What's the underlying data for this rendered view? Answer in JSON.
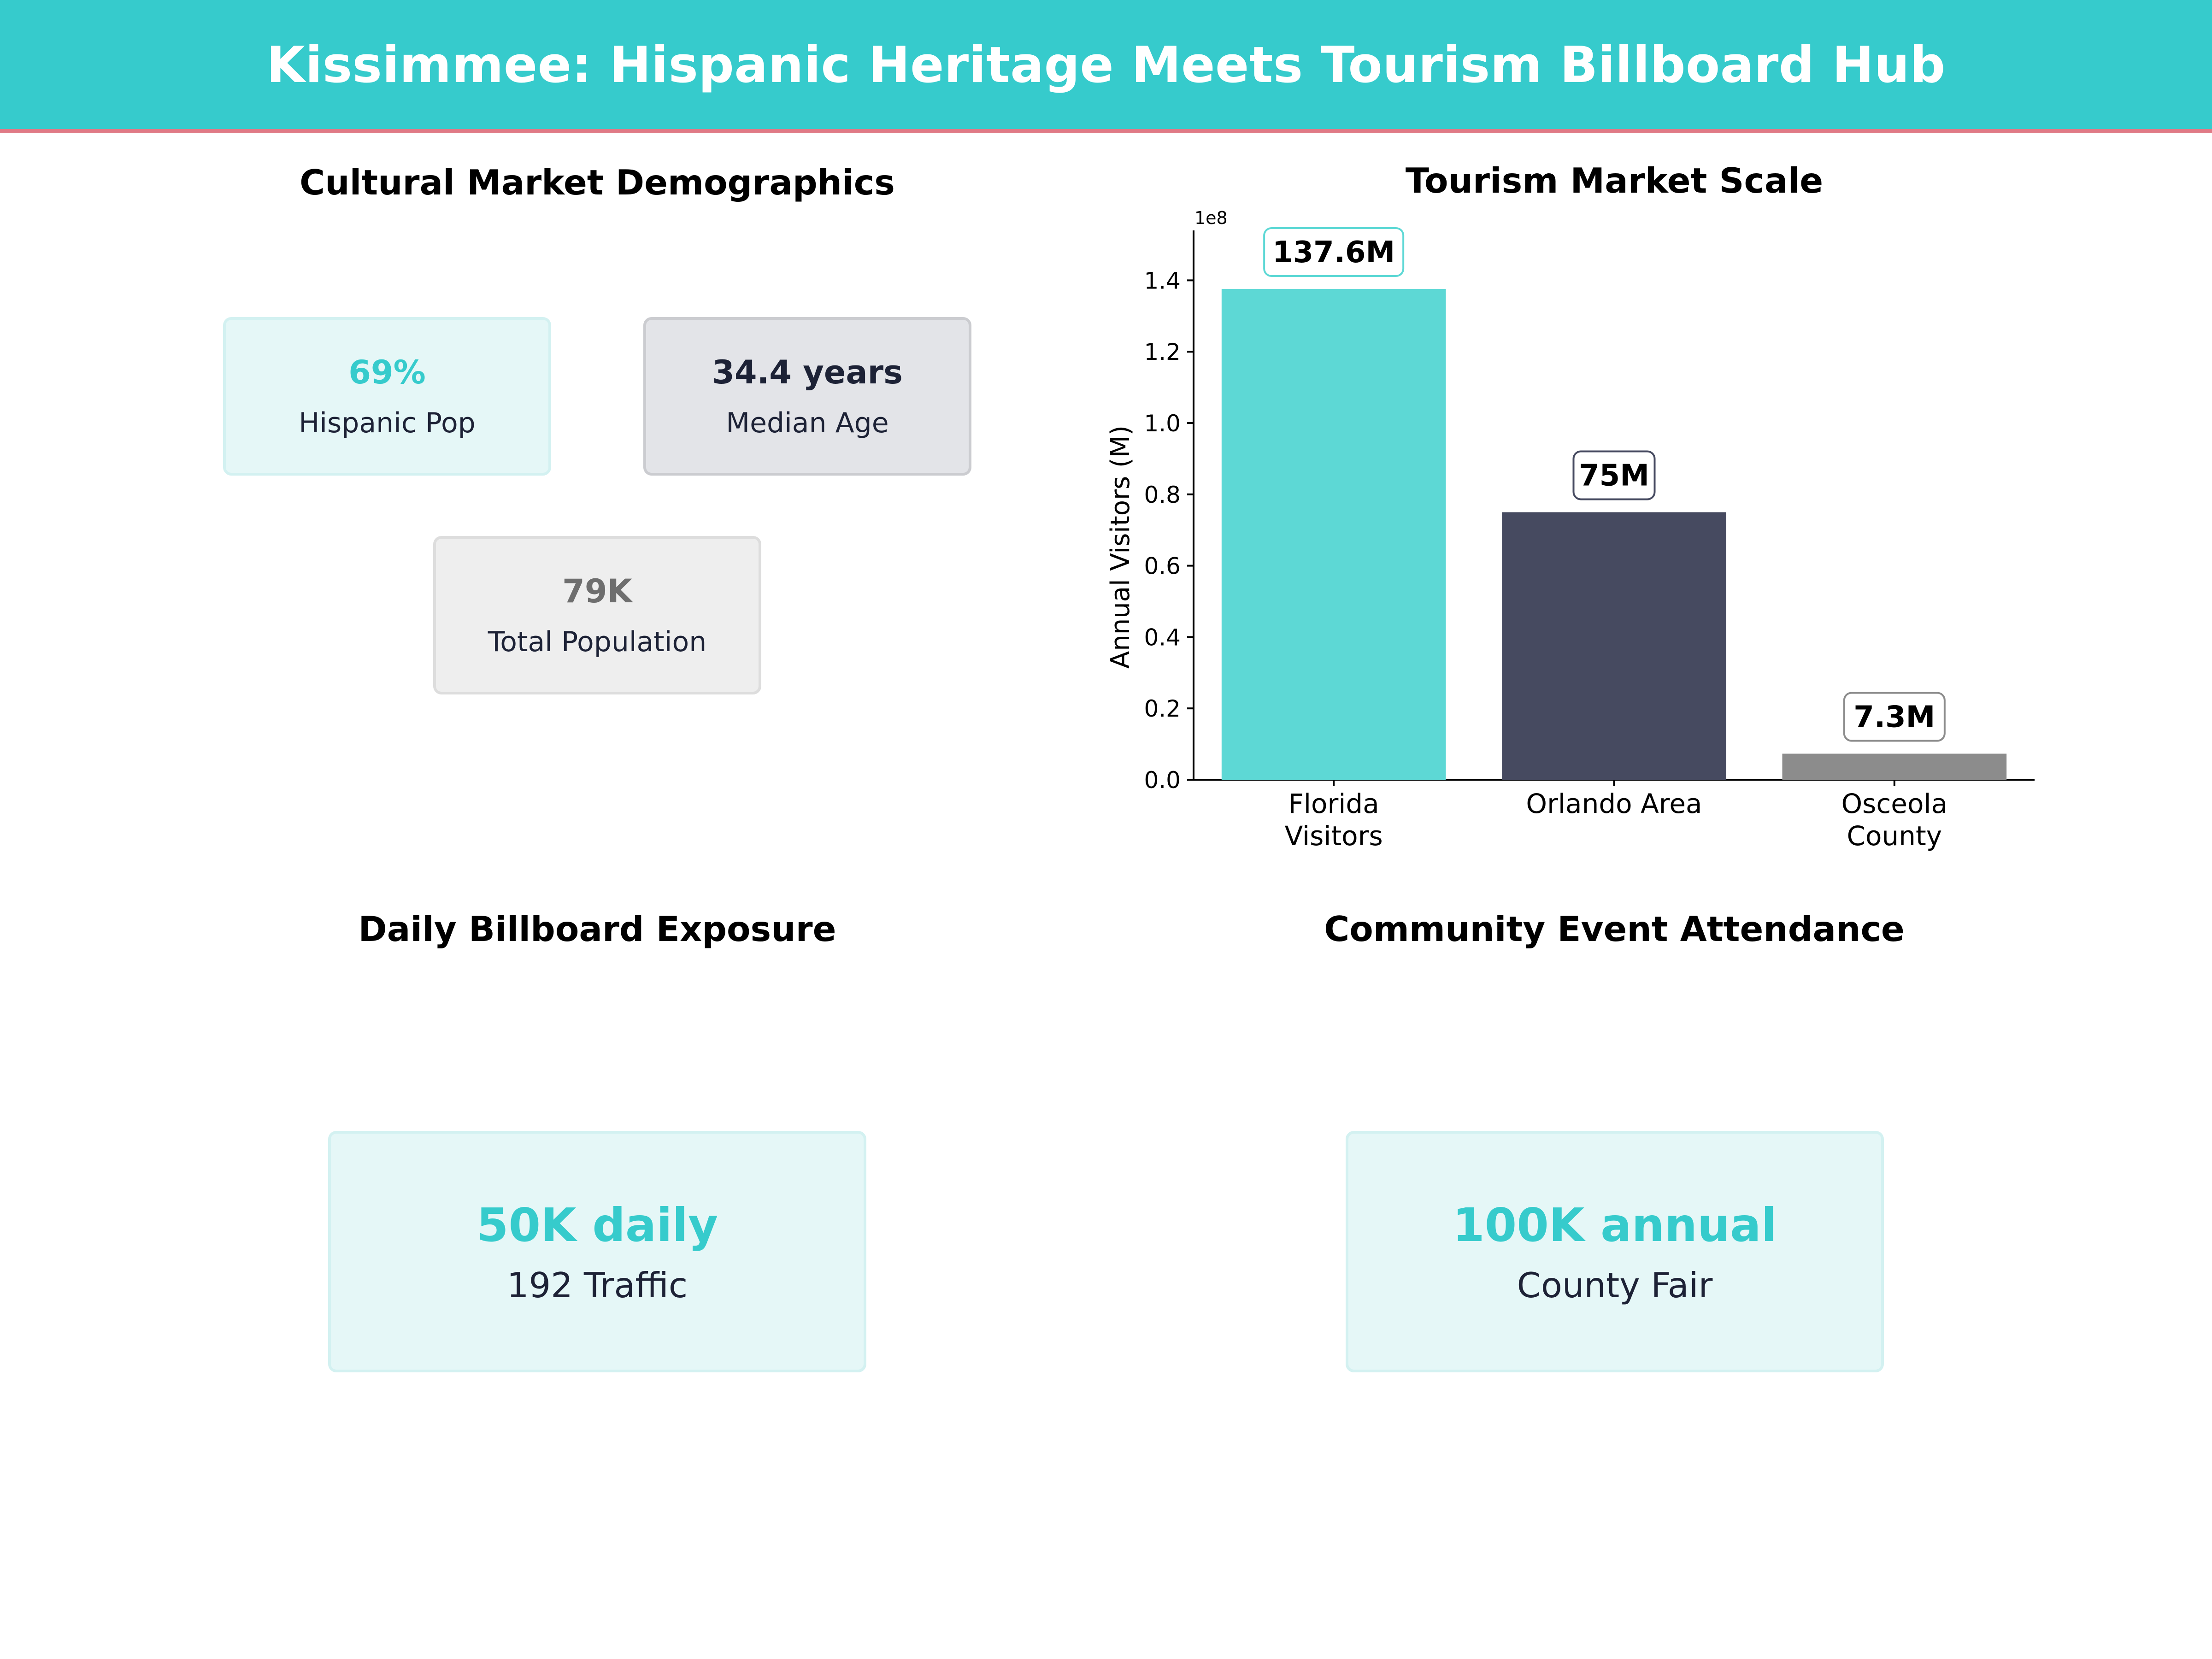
{
  "page": {
    "title": "Kissimmee: Hispanic Heritage Meets Tourism Billboard Hub"
  },
  "demographics": {
    "title": "Cultural Market Demographics",
    "cards": [
      {
        "value": "69%",
        "label": "Hispanic Pop",
        "color": "#36CBCC"
      },
      {
        "value": "34.4 years",
        "label": "Median Age",
        "color": "#1d2236"
      },
      {
        "value": "79K",
        "label": "Total Population",
        "color": "#6e6e6e"
      }
    ]
  },
  "exposure": {
    "title": "Daily Billboard Exposure",
    "value": "50K daily",
    "label": "192 Traffic"
  },
  "events": {
    "title": "Community Event Attendance",
    "value": "100K annual",
    "label": "County Fair"
  },
  "chart_data": {
    "type": "bar",
    "title": "Tourism Market Scale",
    "xlabel": "",
    "ylabel": "Annual Visitors (M)",
    "offset_label": "1e8",
    "categories": [
      [
        "Florida",
        "Visitors"
      ],
      [
        "Orlando Area"
      ],
      [
        "Osceola",
        "County"
      ]
    ],
    "values": [
      137600000,
      75000000,
      7300000
    ],
    "data_labels": [
      "137.6M",
      "75M",
      "7.3M"
    ],
    "colors": [
      "#5DD8D5",
      "#464A60",
      "#8C8C8C"
    ],
    "label_borders": [
      "#5DD8D5",
      "#464A60",
      "#8C8C8C"
    ],
    "ylim": [
      0,
      154000000
    ],
    "yticks": [
      0,
      20000000,
      40000000,
      60000000,
      80000000,
      100000000,
      120000000,
      140000000
    ],
    "ytick_labels": [
      "0.0",
      "0.2",
      "0.4",
      "0.6",
      "0.8",
      "1.0",
      "1.2",
      "1.4"
    ],
    "grid": false,
    "legend": "none"
  }
}
